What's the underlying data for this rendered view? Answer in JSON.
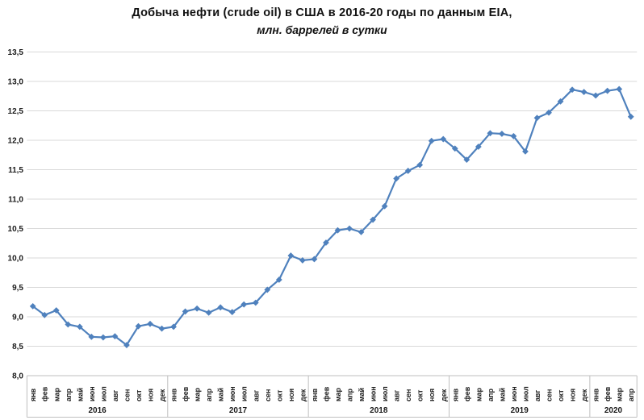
{
  "chart_data": {
    "type": "line",
    "title": "Добыча нефти (crude oil) в США в 2016-20 годы по данным EIA,",
    "subtitle": "млн. баррелей в сутки",
    "ylim": [
      8.0,
      13.5
    ],
    "ytick_step": 0.5,
    "y_tick_labels": [
      "8,0",
      "8,5",
      "9,0",
      "9,5",
      "10,0",
      "10,5",
      "11,0",
      "11,5",
      "12,0",
      "12,5",
      "13,0",
      "13,5"
    ],
    "grid": true,
    "legend_position": "none",
    "decimal_separator": ",",
    "line_color": "#4f81bd",
    "marker": "diamond",
    "gridline_color": "#d9d9d9",
    "axis_color": "#bfbfbf",
    "text_color": "#1a1a1a",
    "month_labels": [
      "янв",
      "фев",
      "мар",
      "апр",
      "май",
      "июн",
      "июл",
      "авг",
      "сен",
      "окт",
      "ноя",
      "дек"
    ],
    "series_name": "Добыча нефти США, млн. баррелей в сутки",
    "years": [
      {
        "label": "2016",
        "values": [
          9.18,
          9.03,
          9.11,
          8.87,
          8.83,
          8.66,
          8.65,
          8.67,
          8.52,
          8.84,
          8.88,
          8.8
        ]
      },
      {
        "label": "2017",
        "values": [
          8.83,
          9.09,
          9.14,
          9.07,
          9.16,
          9.08,
          9.21,
          9.24,
          9.46,
          9.63,
          10.04,
          9.96
        ]
      },
      {
        "label": "2018",
        "values": [
          9.98,
          10.26,
          10.47,
          10.5,
          10.44,
          10.65,
          10.88,
          11.35,
          11.48,
          11.58,
          11.99,
          12.02
        ]
      },
      {
        "label": "2019",
        "values": [
          11.86,
          11.67,
          11.89,
          12.12,
          12.11,
          12.07,
          11.81,
          12.38,
          12.47,
          12.66,
          12.86,
          12.82
        ]
      },
      {
        "label": "2020",
        "values": [
          12.76,
          12.84,
          12.87,
          12.4
        ]
      }
    ]
  }
}
